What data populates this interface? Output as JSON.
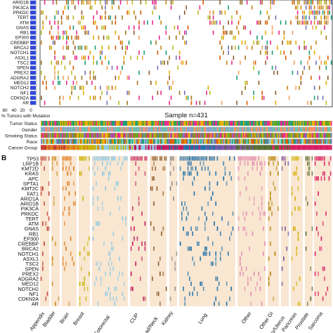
{
  "panel_a": {
    "genes_visible": [
      "ARID1B",
      "PIK3CA",
      "PRKDC",
      "TERT",
      "ATM",
      "GNAS",
      "RB1",
      "EP300",
      "CREBBP",
      "BRCA2",
      "NOTCH1",
      "ASXL1",
      "TSC2",
      "SPEN",
      "PREX2",
      "ADGRA2",
      "MED12",
      "NOTCH2",
      "NF1",
      "CDKN2A",
      "AR"
    ],
    "pct_axis_ticks": [
      "60",
      "40",
      "20",
      "0"
    ],
    "pct_axis_label": "% Tumors with Mutation",
    "sample_label": "Sample n=431",
    "annotation_tracks": [
      "Tumor Status",
      "Gender",
      "Smoking Status",
      "Race",
      "Cancer Group"
    ],
    "bar_color": "#3248d8"
  },
  "panel_b": {
    "label": "B",
    "genes": [
      "TP53",
      "LRP1B",
      "KMT2D",
      "KRAS",
      "APC",
      "SPTA1",
      "KMT2C",
      "FAT1",
      "ARID1A",
      "ARID1B",
      "PIK3CA",
      "PRKDC",
      "TERT",
      "ATM",
      "GNAS",
      "RB1",
      "EP300",
      "CREBBP",
      "BRCA2",
      "NOTCH1",
      "ASXL1",
      "TSC2",
      "SPEN",
      "PREX2",
      "ADGRA2",
      "MED12",
      "NOTCH2",
      "NF1",
      "CDKN2A",
      "AR"
    ],
    "groups": [
      {
        "name": "Appendix",
        "display": "Appendix",
        "color": "#c0392b"
      },
      {
        "name": "Bladder",
        "display": "Bladder",
        "color": "#c98a1b"
      },
      {
        "name": "Brain",
        "display": "Brain",
        "color": "#e07b1a"
      },
      {
        "name": "Breast",
        "display": "Breast",
        "color": "#c8b400"
      },
      {
        "name": "Colorectal",
        "display": "Colorectal",
        "color": "#8ecae6"
      },
      {
        "name": "CUP",
        "display": "CUP",
        "color": "#c2185b"
      },
      {
        "name": "Head/Neck",
        "display": "Head/Neck",
        "color": "#8d5a2b"
      },
      {
        "name": "Kidney",
        "display": "Kidney",
        "color": "#8a8a8a"
      },
      {
        "name": "Lung",
        "display": "Lung",
        "color": "#1f6fa8"
      },
      {
        "name": "Other",
        "display": "Other",
        "color": "#e38bb0"
      },
      {
        "name": "Other GI",
        "display": "Other GI",
        "color": "#b8860b"
      },
      {
        "name": "Ovary/Uterus",
        "display": "Ovary/Uterus",
        "color": "#7b4fa0"
      },
      {
        "name": "Pancreas",
        "display": "Pancreas",
        "color": "#d4b000"
      },
      {
        "name": "Prostate",
        "display": "Prostate",
        "color": "#556b2f"
      },
      {
        "name": "Sarcoma",
        "display": "Sarcoma",
        "color": "#d81b60"
      }
    ],
    "background_color": "#f9e7d2"
  }
}
